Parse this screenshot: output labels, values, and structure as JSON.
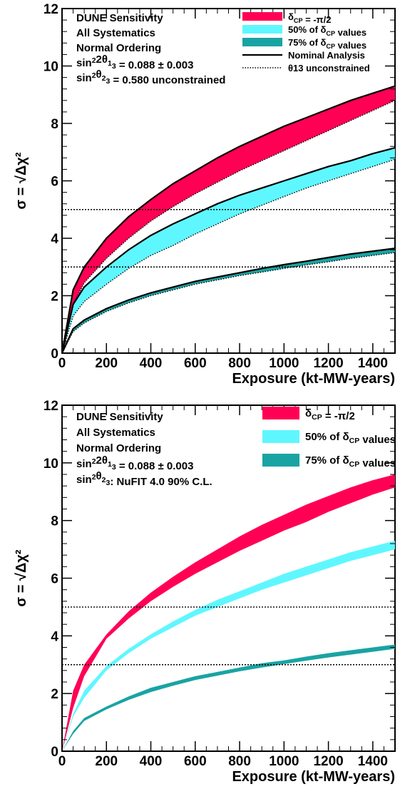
{
  "colors": {
    "red": "#ff0055",
    "cyan": "#5ff7ff",
    "teal": "#1aa3a3",
    "frame": "#000000"
  },
  "chart_data": [
    {
      "type": "area",
      "xlabel": "Exposure (kt-MW-years)",
      "ylabel": "σ = √Δχ²",
      "xlim": [
        0,
        1500
      ],
      "ylim": [
        0,
        12
      ],
      "xticks": [
        "0",
        "200",
        "400",
        "600",
        "800",
        "1000",
        "1200",
        "1400"
      ],
      "yticks": [
        "0",
        "2",
        "4",
        "6",
        "8",
        "10",
        "12"
      ],
      "info": [
        "DUNE Sensitivity",
        "All Systematics",
        "Normal Ordering",
        "sin²2θ₁₃ = 0.088 ± 0.003",
        "sin²θ₂₃ = 0.580 unconstrained"
      ],
      "legend": [
        {
          "label": "δCP = -π/2",
          "kind": "fill",
          "color": "#ff0055"
        },
        {
          "label": "50% of δCP values",
          "kind": "fill",
          "color": "#5ff7ff"
        },
        {
          "label": "75% of δCP values",
          "kind": "fill",
          "color": "#1aa3a3"
        },
        {
          "label": "Nominal Analysis",
          "kind": "solid"
        },
        {
          "label": "θ13 unconstrained",
          "kind": "dotted"
        }
      ],
      "hlines": [
        3,
        5
      ],
      "x": [
        0,
        50,
        100,
        200,
        300,
        400,
        500,
        600,
        700,
        800,
        900,
        1000,
        1100,
        1200,
        1300,
        1400,
        1500
      ],
      "series": [
        {
          "name": "δCP = -π/2",
          "color": "#ff0055",
          "upper": [
            0,
            2.2,
            3.0,
            4.0,
            4.75,
            5.35,
            5.9,
            6.35,
            6.8,
            7.2,
            7.55,
            7.9,
            8.2,
            8.5,
            8.8,
            9.05,
            9.3
          ],
          "lower": [
            0,
            1.7,
            2.45,
            3.3,
            4.0,
            4.6,
            5.1,
            5.55,
            5.95,
            6.35,
            6.7,
            7.05,
            7.4,
            7.75,
            8.1,
            8.45,
            8.8
          ]
        },
        {
          "name": "50% of δCP values",
          "color": "#5ff7ff",
          "upper": [
            0,
            1.7,
            2.3,
            3.0,
            3.6,
            4.1,
            4.5,
            4.85,
            5.2,
            5.5,
            5.75,
            6.0,
            6.25,
            6.5,
            6.7,
            6.95,
            7.15
          ],
          "lower": [
            0,
            1.3,
            1.8,
            2.4,
            2.95,
            3.4,
            3.75,
            4.15,
            4.5,
            4.85,
            5.15,
            5.45,
            5.75,
            6.0,
            6.25,
            6.5,
            6.75
          ]
        },
        {
          "name": "75% of δCP values",
          "color": "#1aa3a3",
          "upper": [
            0,
            0.85,
            1.15,
            1.55,
            1.85,
            2.1,
            2.3,
            2.5,
            2.65,
            2.8,
            2.95,
            3.08,
            3.2,
            3.33,
            3.45,
            3.55,
            3.65
          ],
          "lower": [
            0,
            0.75,
            1.05,
            1.45,
            1.75,
            2.0,
            2.2,
            2.4,
            2.55,
            2.7,
            2.82,
            2.95,
            3.07,
            3.18,
            3.3,
            3.4,
            3.5
          ]
        }
      ]
    },
    {
      "type": "area",
      "xlabel": "Exposure (kt-MW-years)",
      "ylabel": "σ = √Δχ²",
      "xlim": [
        0,
        1500
      ],
      "ylim": [
        0,
        12
      ],
      "xticks": [
        "0",
        "200",
        "400",
        "600",
        "800",
        "1000",
        "1200",
        "1400"
      ],
      "yticks": [
        "0",
        "2",
        "4",
        "6",
        "8",
        "10",
        "12"
      ],
      "info": [
        "DUNE Sensitivity",
        "All Systematics",
        "Normal Ordering",
        "sin²2θ₁₃ = 0.088 ± 0.003",
        "sin²θ₂₃: NuFIT 4.0 90% C.L."
      ],
      "legend": [
        {
          "label": "δCP = -π/2",
          "kind": "fill",
          "color": "#ff0055"
        },
        {
          "label": "50% of δCP values",
          "kind": "fill",
          "color": "#5ff7ff"
        },
        {
          "label": "75% of δCP values",
          "kind": "fill",
          "color": "#1aa3a3"
        }
      ],
      "hlines": [
        3,
        5
      ],
      "x": [
        0,
        50,
        100,
        200,
        300,
        400,
        500,
        600,
        700,
        800,
        900,
        1000,
        1100,
        1200,
        1300,
        1400,
        1500
      ],
      "series": [
        {
          "name": "δCP = -π/2",
          "color": "#ff0055",
          "upper": [
            0,
            2.1,
            3.0,
            4.05,
            4.85,
            5.5,
            6.05,
            6.55,
            7.0,
            7.45,
            7.85,
            8.2,
            8.55,
            8.85,
            9.15,
            9.4,
            9.6
          ],
          "lower": [
            0,
            1.5,
            2.6,
            3.9,
            4.6,
            5.2,
            5.7,
            6.15,
            6.55,
            6.95,
            7.3,
            7.65,
            7.95,
            8.3,
            8.6,
            8.9,
            9.15
          ]
        },
        {
          "name": "50% of δCP values",
          "color": "#5ff7ff",
          "upper": [
            0,
            1.3,
            2.1,
            2.95,
            3.55,
            4.05,
            4.5,
            4.9,
            5.25,
            5.55,
            5.85,
            6.15,
            6.4,
            6.65,
            6.9,
            7.1,
            7.3
          ],
          "lower": [
            0,
            1.2,
            1.85,
            2.8,
            3.4,
            3.9,
            4.3,
            4.7,
            5.0,
            5.3,
            5.6,
            5.85,
            6.1,
            6.35,
            6.6,
            6.8,
            7.0
          ]
        },
        {
          "name": "75% of δCP values",
          "color": "#1aa3a3",
          "upper": [
            0,
            0.7,
            1.15,
            1.55,
            1.9,
            2.2,
            2.4,
            2.6,
            2.75,
            2.9,
            3.05,
            3.15,
            3.28,
            3.4,
            3.5,
            3.6,
            3.7
          ],
          "lower": [
            0,
            0.6,
            1.05,
            1.45,
            1.78,
            2.05,
            2.27,
            2.47,
            2.62,
            2.77,
            2.9,
            3.02,
            3.14,
            3.25,
            3.35,
            3.45,
            3.55
          ]
        }
      ]
    }
  ]
}
